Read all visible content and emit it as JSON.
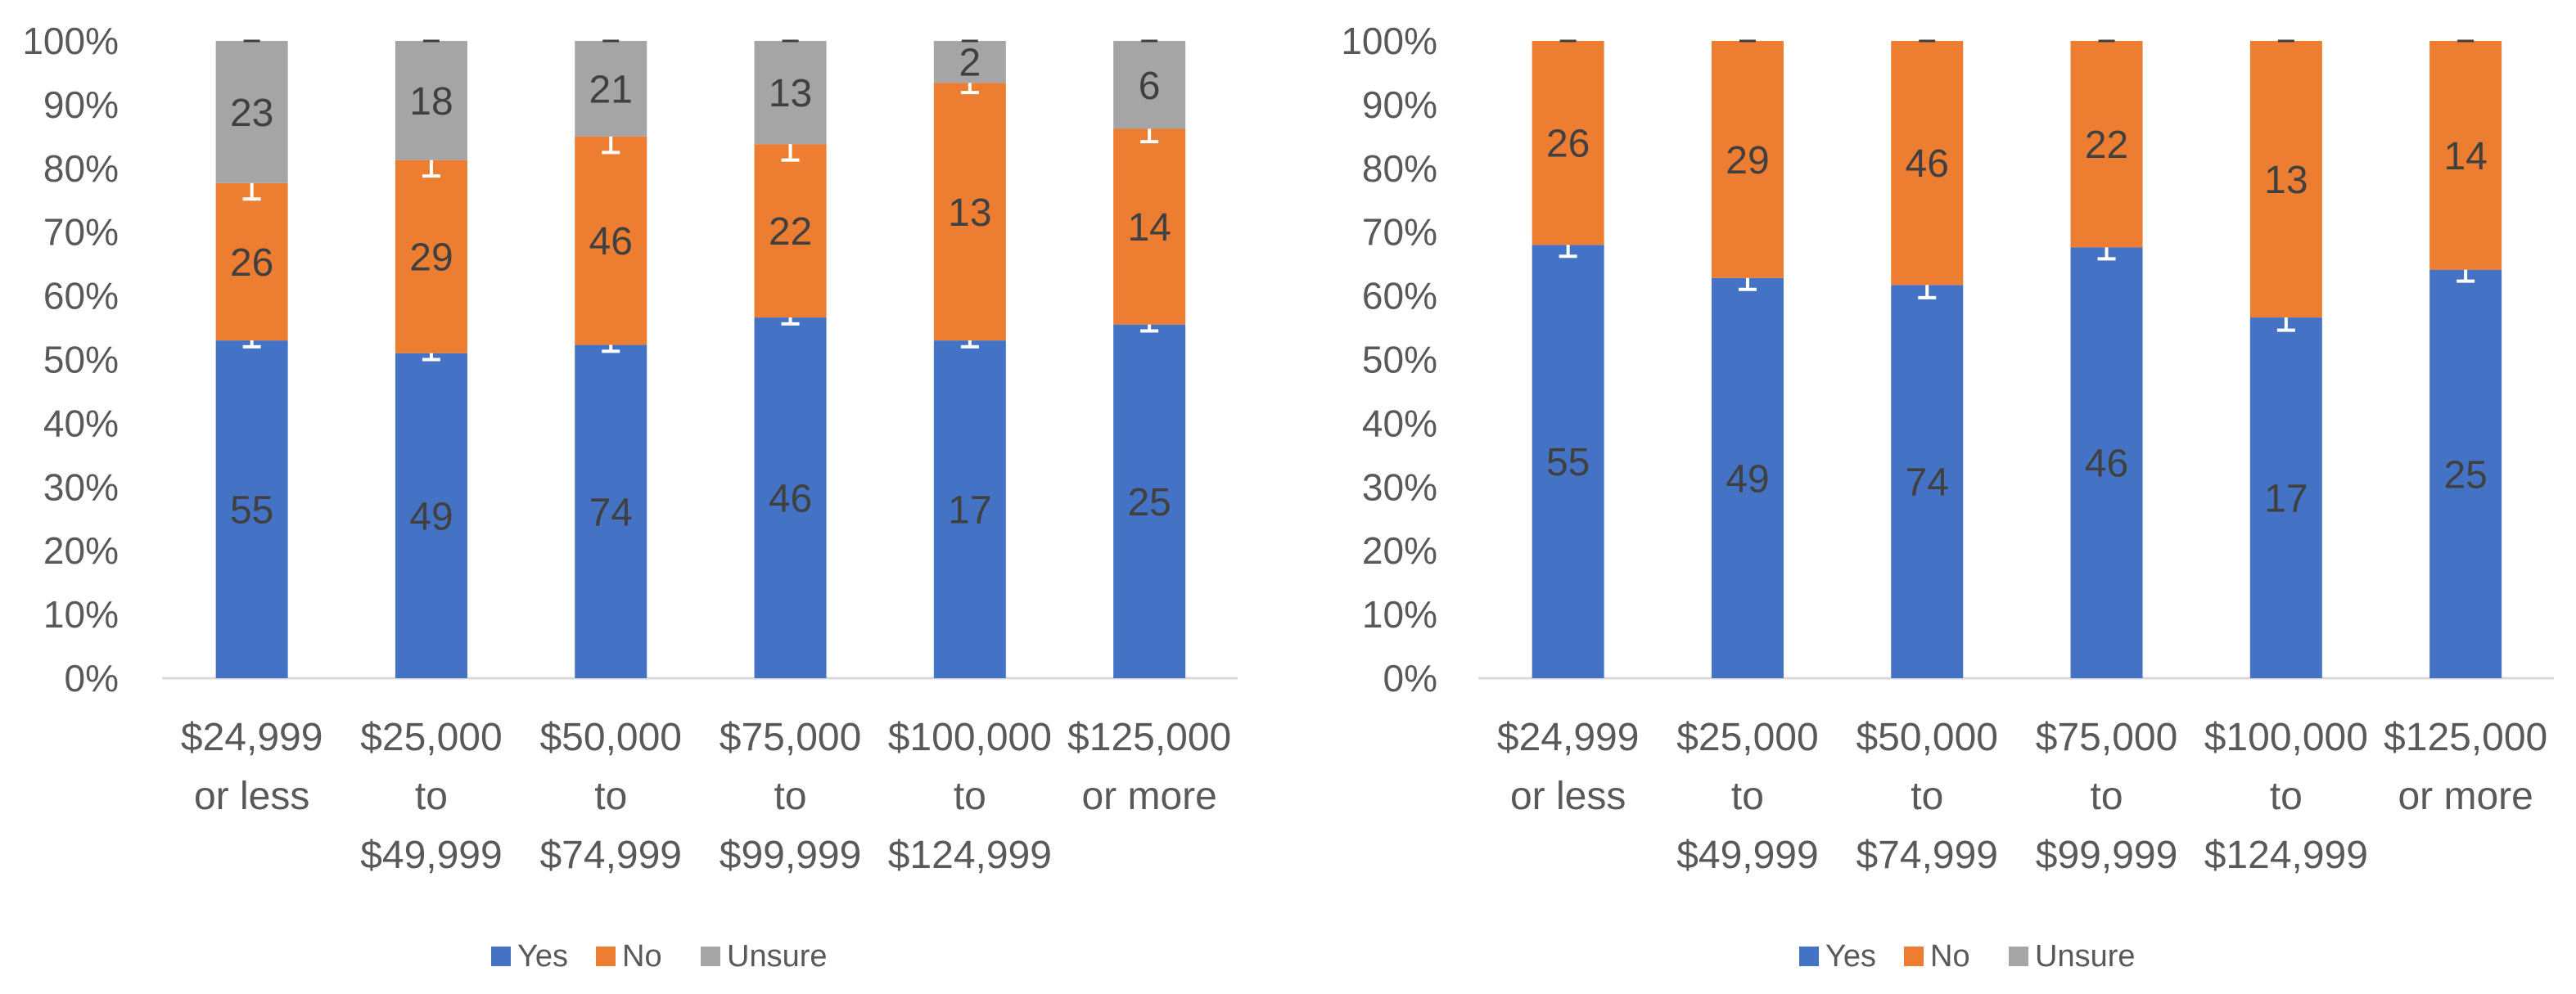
{
  "chart_data": [
    {
      "type": "bar",
      "stacked": "percent",
      "categories": [
        [
          "$24,999",
          "or less"
        ],
        [
          "$25,000",
          "to",
          "$49,999"
        ],
        [
          "$50,000",
          "to",
          "$74,999"
        ],
        [
          "$75,000",
          "to",
          "$99,999"
        ],
        [
          "$100,000",
          "to",
          "$124,999"
        ],
        [
          "$125,000",
          "or more"
        ]
      ],
      "series": [
        {
          "name": "Yes",
          "color": "#4472C4",
          "percent": [
            53,
            51,
            52.3,
            56.6,
            53,
            55.5
          ],
          "labels": [
            "55",
            "49",
            "74",
            "46",
            "17",
            "25"
          ],
          "error": [
            1,
            1,
            1,
            1,
            1,
            1
          ]
        },
        {
          "name": "No",
          "color": "#ED7D31",
          "percent": [
            24.7,
            30.3,
            32.7,
            27.2,
            40.4,
            30.7
          ],
          "labels": [
            "26",
            "29",
            "46",
            "22",
            "13",
            "14"
          ],
          "error": [
            2.5,
            2.5,
            2.5,
            2.5,
            1.5,
            2
          ]
        },
        {
          "name": "Unsure",
          "color": "#A5A5A5",
          "percent": [
            22.3,
            18.7,
            15,
            16.2,
            6.6,
            13.8
          ],
          "labels": [
            "23",
            "18",
            "21",
            "13",
            "2",
            "6"
          ],
          "error": [
            0,
            0,
            0,
            0,
            0,
            0
          ]
        }
      ],
      "yticks": [
        "0%",
        "10%",
        "20%",
        "30%",
        "40%",
        "50%",
        "60%",
        "70%",
        "80%",
        "90%",
        "100%"
      ],
      "ylim": [
        0,
        100
      ],
      "legend": "bottom",
      "legend_items": [
        "Yes",
        "No",
        "Unsure"
      ]
    },
    {
      "type": "bar",
      "stacked": "percent",
      "categories": [
        [
          "$24,999",
          "or less"
        ],
        [
          "$25,000",
          "to",
          "$49,999"
        ],
        [
          "$50,000",
          "to",
          "$74,999"
        ],
        [
          "$75,000",
          "to",
          "$99,999"
        ],
        [
          "$100,000",
          "to",
          "$124,999"
        ],
        [
          "$125,000",
          "or more"
        ]
      ],
      "series": [
        {
          "name": "Yes",
          "color": "#4472C4",
          "percent": [
            68,
            62.8,
            61.7,
            67.6,
            56.6,
            64.1
          ],
          "labels": [
            "55",
            "49",
            "74",
            "46",
            "17",
            "25"
          ],
          "error": [
            1.8,
            1.8,
            2,
            1.8,
            2,
            1.8
          ]
        },
        {
          "name": "No",
          "color": "#ED7D31",
          "percent": [
            32,
            37.2,
            38.3,
            32.4,
            43.4,
            35.9
          ],
          "labels": [
            "26",
            "29",
            "46",
            "22",
            "13",
            "14"
          ],
          "error": [
            0,
            0,
            0,
            0,
            0,
            0
          ]
        },
        {
          "name": "Unsure",
          "color": "#A5A5A5",
          "percent": [
            0,
            0,
            0,
            0,
            0,
            0
          ],
          "labels": [
            "",
            "",
            "",
            "",
            "",
            ""
          ],
          "error": [
            0,
            0,
            0,
            0,
            0,
            0
          ]
        }
      ],
      "yticks": [
        "0%",
        "10%",
        "20%",
        "30%",
        "40%",
        "50%",
        "60%",
        "70%",
        "80%",
        "90%",
        "100%"
      ],
      "ylim": [
        0,
        100
      ],
      "legend": "bottom",
      "legend_items": [
        "Yes",
        "No",
        "Unsure"
      ]
    }
  ]
}
